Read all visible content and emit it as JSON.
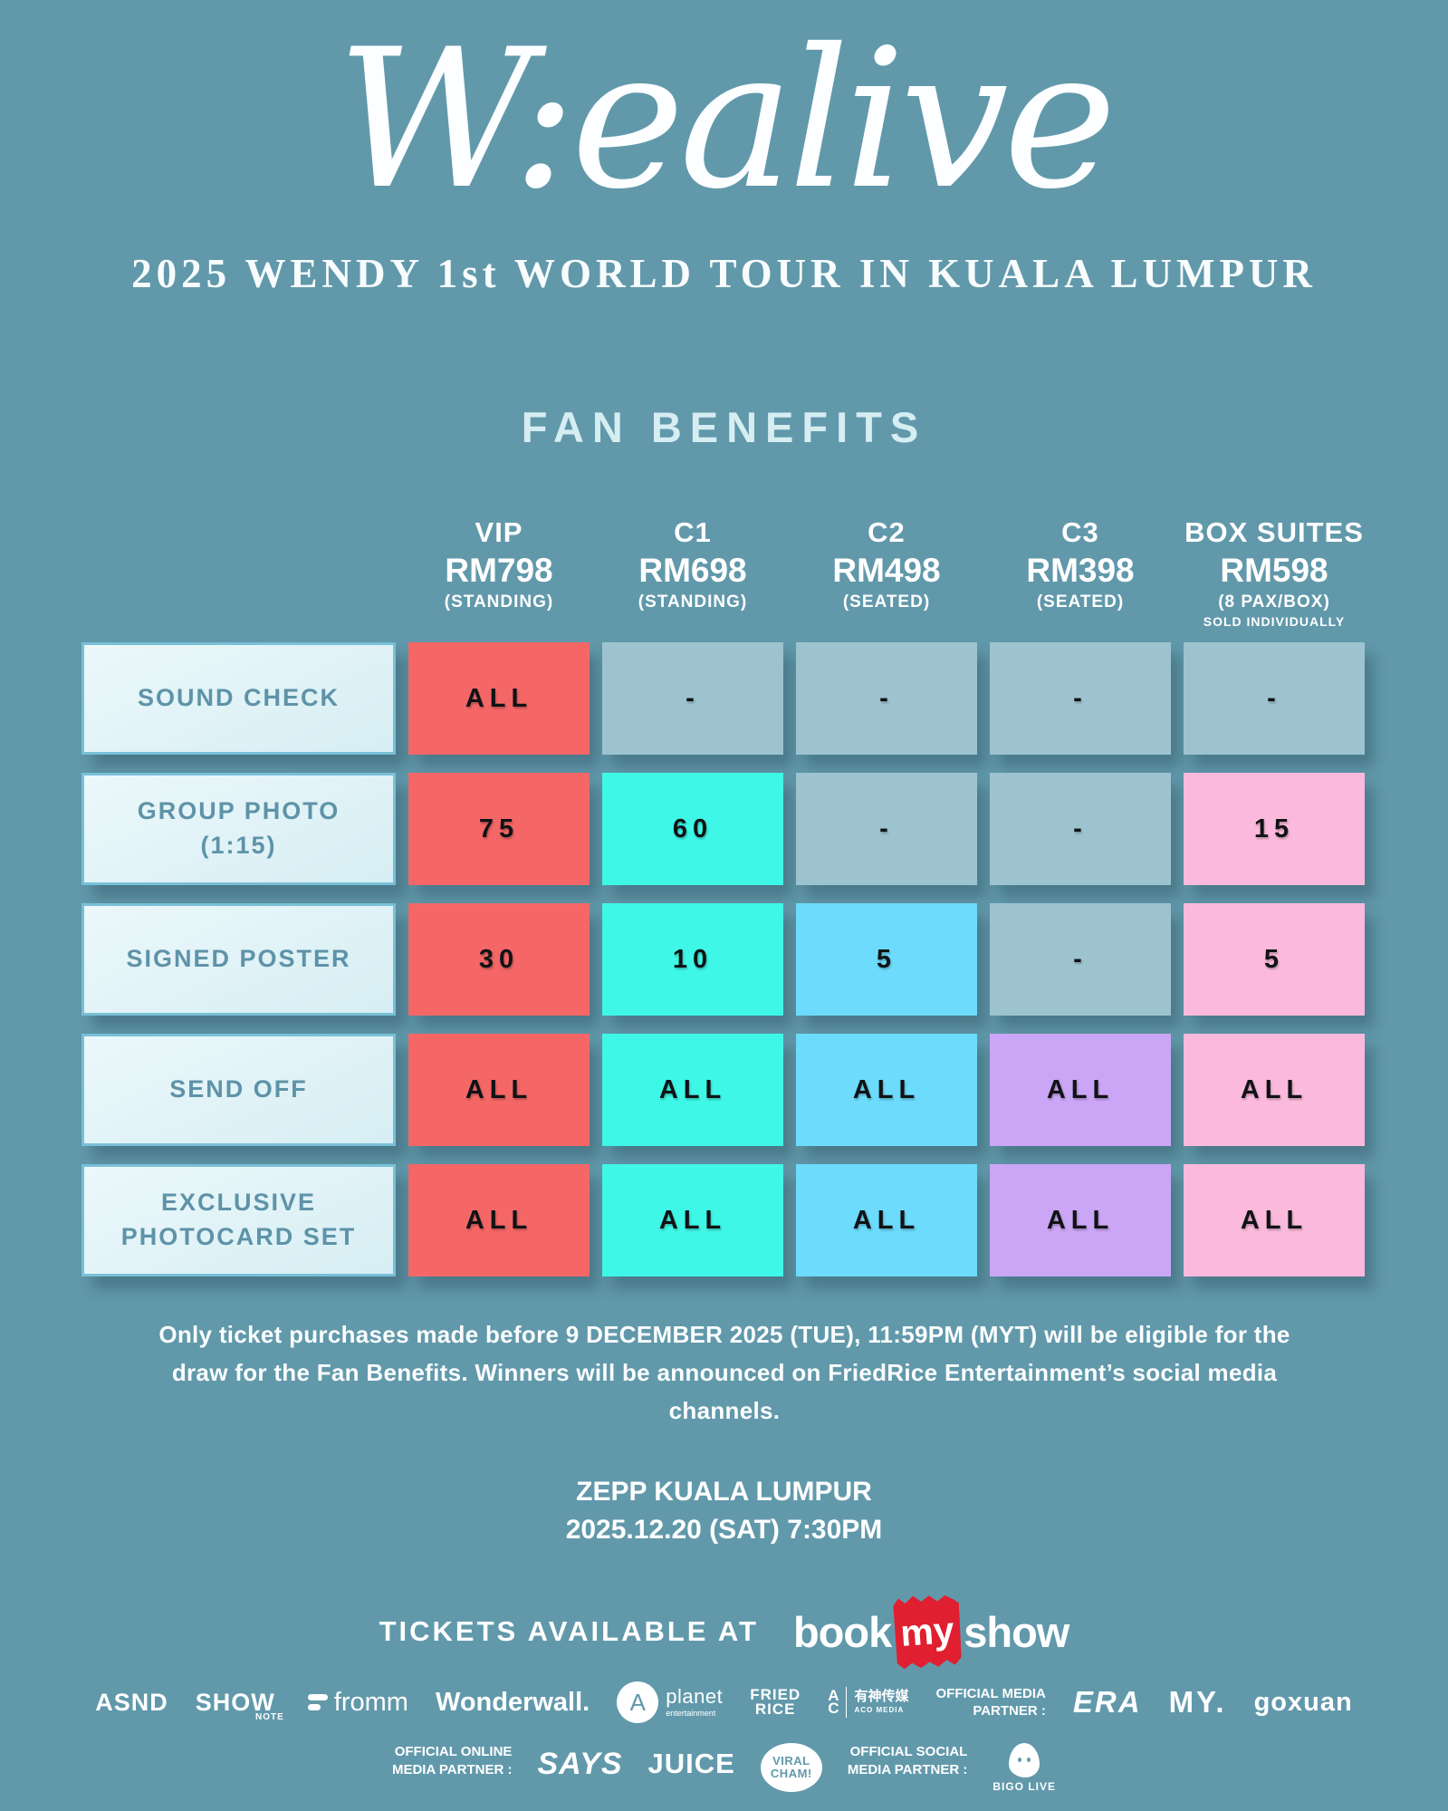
{
  "colors": {
    "background": "#6199ab",
    "red": "#f56767",
    "cyan": "#3ff7e7",
    "sky": "#6ddbfc",
    "purple": "#cba6f6",
    "pink": "#fbbadd",
    "empty": "#9dc3cf",
    "bookmyshow_red": "#e01f30"
  },
  "header": {
    "title": "W:ealive",
    "subtitle": "2025 WENDY 1st WORLD TOUR IN KUALA LUMPUR",
    "section_title": "FAN BENEFITS"
  },
  "table": {
    "columns": [
      {
        "name": "VIP",
        "price": "RM798",
        "note": "(STANDING)"
      },
      {
        "name": "C1",
        "price": "RM698",
        "note": "(STANDING)"
      },
      {
        "name": "C2",
        "price": "RM498",
        "note": "(SEATED)"
      },
      {
        "name": "C3",
        "price": "RM398",
        "note": "(SEATED)"
      },
      {
        "name": "BOX SUITES",
        "price": "RM598",
        "note": "(8 PAX/BOX)",
        "note2": "SOLD INDIVIDUALLY"
      }
    ],
    "rows": [
      {
        "label": "SOUND CHECK",
        "cells": [
          {
            "value": "ALL",
            "bg": "#f56767"
          },
          {
            "value": "-",
            "bg": "#9dc3cf"
          },
          {
            "value": "-",
            "bg": "#9dc3cf"
          },
          {
            "value": "-",
            "bg": "#9dc3cf"
          },
          {
            "value": "-",
            "bg": "#9dc3cf"
          }
        ]
      },
      {
        "label": "GROUP PHOTO (1:15)",
        "cells": [
          {
            "value": "75",
            "bg": "#f56767"
          },
          {
            "value": "60",
            "bg": "#3ff7e7"
          },
          {
            "value": "-",
            "bg": "#9dc3cf"
          },
          {
            "value": "-",
            "bg": "#9dc3cf"
          },
          {
            "value": "15",
            "bg": "#fbbadd"
          }
        ]
      },
      {
        "label": "SIGNED POSTER",
        "cells": [
          {
            "value": "30",
            "bg": "#f56767"
          },
          {
            "value": "10",
            "bg": "#3ff7e7"
          },
          {
            "value": "5",
            "bg": "#6ddbfc"
          },
          {
            "value": "-",
            "bg": "#9dc3cf"
          },
          {
            "value": "5",
            "bg": "#fbbadd"
          }
        ]
      },
      {
        "label": "SEND OFF",
        "cells": [
          {
            "value": "ALL",
            "bg": "#f56767"
          },
          {
            "value": "ALL",
            "bg": "#3ff7e7"
          },
          {
            "value": "ALL",
            "bg": "#6ddbfc"
          },
          {
            "value": "ALL",
            "bg": "#cba6f6"
          },
          {
            "value": "ALL",
            "bg": "#fbbadd"
          }
        ]
      },
      {
        "label": "EXCLUSIVE PHOTOCARD SET",
        "cells": [
          {
            "value": "ALL",
            "bg": "#f56767"
          },
          {
            "value": "ALL",
            "bg": "#3ff7e7"
          },
          {
            "value": "ALL",
            "bg": "#6ddbfc"
          },
          {
            "value": "ALL",
            "bg": "#cba6f6"
          },
          {
            "value": "ALL",
            "bg": "#fbbadd"
          }
        ]
      }
    ]
  },
  "footer": {
    "eligibility_note": "Only ticket purchases made before 9 DECEMBER 2025 (TUE), 11:59PM (MYT) will be eligible for the draw for the Fan Benefits. Winners will be announced on FriedRice Entertainment’s social media channels.",
    "venue": "ZEPP KUALA LUMPUR",
    "datetime": "2025.12.20 (SAT) 7:30PM",
    "tickets_label": "TICKETS AVAILABLE AT",
    "bookmyshow": {
      "book": "book",
      "my": "my",
      "show": "show"
    }
  },
  "partners": {
    "row1": {
      "asnd": "ASND",
      "show": "SHOW",
      "note": "NOTE",
      "fromm": "fromm",
      "wonderwall": "Wonderwall.",
      "planet_mark": "A",
      "planet": "planet",
      "planet_sub": "entertainment",
      "fried": "FRIED",
      "rice": "RICE",
      "aco_a": "A",
      "aco_c": "C",
      "aco_cn": "有神传媒",
      "aco_en": "ACO MEDIA",
      "official_media_label": "OFFICIAL MEDIA\nPARTNER :",
      "era": "ERA",
      "my": "MY.",
      "goxuan": "goxuan"
    },
    "row2": {
      "online_label": "OFFICIAL ONLINE\nMEDIA PARTNER :",
      "says": "SAYS",
      "juice": "JUICE",
      "viral1": "VIRAL",
      "viral2": "CHAM!",
      "social_label": "OFFICIAL SOCIAL\nMEDIA PARTNER :",
      "bigo": "BIGO LIVE"
    }
  }
}
